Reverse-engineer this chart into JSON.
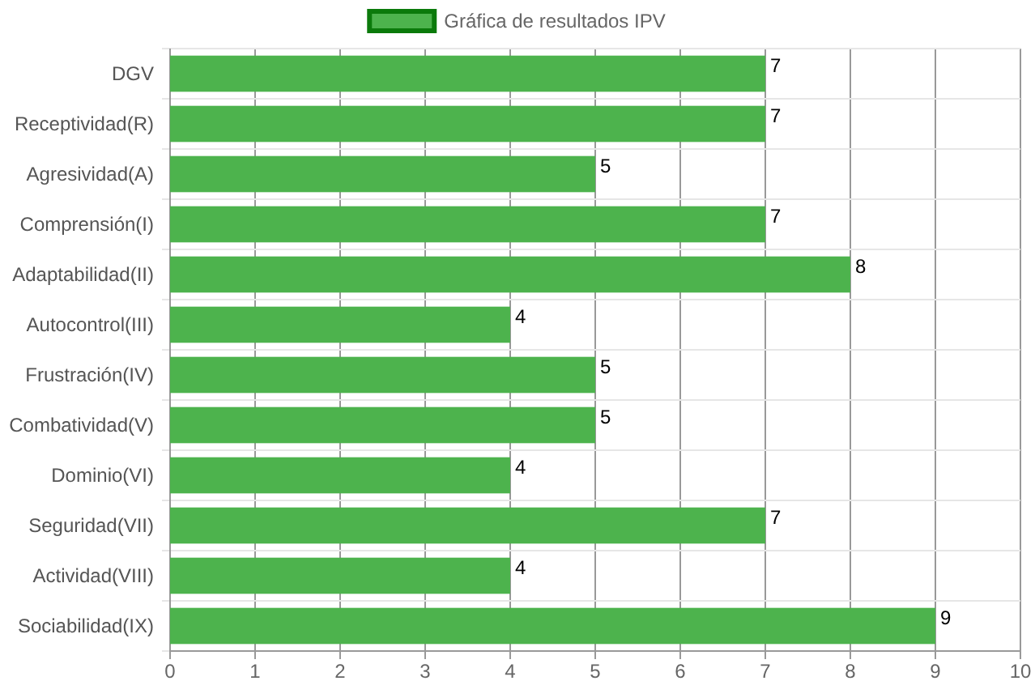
{
  "chart_data": {
    "type": "bar",
    "orientation": "horizontal",
    "categories": [
      "DGV",
      "Receptividad(R)",
      "Agresividad(A)",
      "Comprensión(I)",
      "Adaptabilidad(II)",
      "Autocontrol(III)",
      "Frustración(IV)",
      "Combatividad(V)",
      "Dominio(VI)",
      "Seguridad(VII)",
      "Actividad(VIII)",
      "Sociabilidad(IX)"
    ],
    "series": [
      {
        "name": "Gráfica de resultados IPV",
        "color": "#4db34d",
        "values": [
          7,
          7,
          5,
          7,
          8,
          4,
          5,
          5,
          4,
          7,
          4,
          9
        ]
      }
    ],
    "xlim": [
      0,
      10
    ],
    "xticks": [
      0,
      1,
      2,
      3,
      4,
      5,
      6,
      7,
      8,
      9,
      10
    ],
    "grid": true,
    "legend": "top",
    "data_labels": true
  }
}
